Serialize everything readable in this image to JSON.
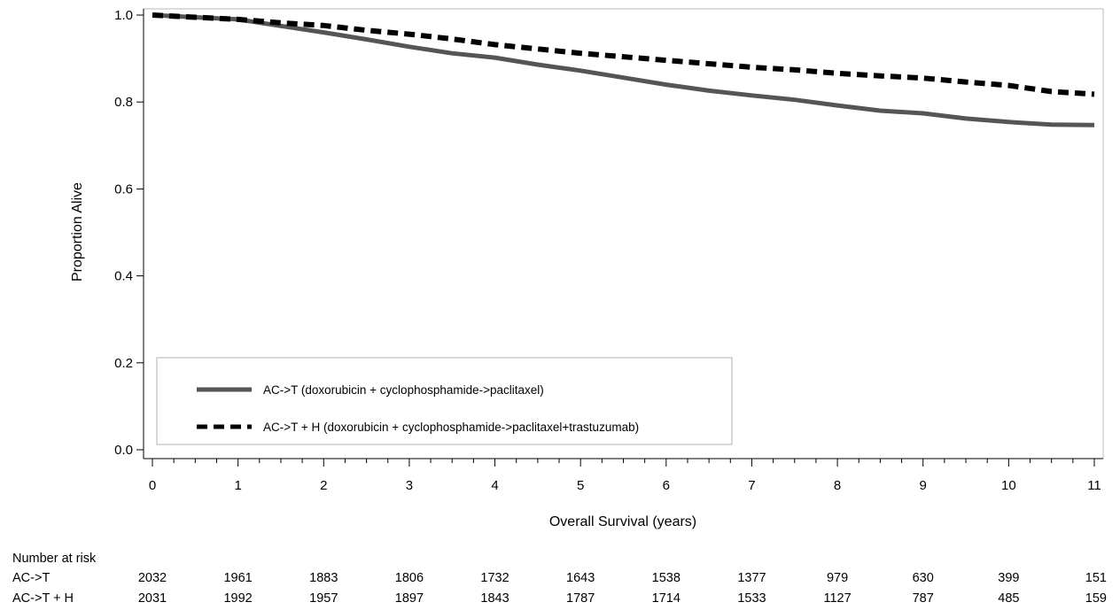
{
  "chart_data": {
    "type": "line",
    "title": "",
    "xlabel": "Overall Survival (years)",
    "ylabel": "Proportion Alive",
    "xlim": [
      0,
      11
    ],
    "ylim": [
      0,
      1
    ],
    "x_ticks": [
      0,
      1,
      2,
      3,
      4,
      5,
      6,
      7,
      8,
      9,
      10,
      11
    ],
    "x_tick_labels": [
      "0",
      "1",
      "2",
      "3",
      "4",
      "5",
      "6",
      "7",
      "8",
      "9",
      "10",
      "11"
    ],
    "x_minor_step": 0.25,
    "y_ticks": [
      0,
      0.2,
      0.4,
      0.6,
      0.8,
      1.0
    ],
    "y_tick_labels": [
      "0.0",
      "0.2",
      "0.4",
      "0.6",
      "0.8",
      "1.0"
    ],
    "grid": false,
    "legend_position": "bottom-left",
    "series": [
      {
        "name": "AC->T (doxorubicin + cyclophosphamide->paclitaxel)",
        "style": "solid",
        "color": "#555555",
        "x": [
          0,
          0.5,
          1,
          1.5,
          2,
          2.5,
          3,
          3.5,
          4,
          4.5,
          5,
          5.5,
          6,
          6.5,
          7,
          7.5,
          8,
          8.5,
          9,
          9.5,
          10,
          10.5,
          11
        ],
        "y": [
          1.0,
          0.995,
          0.99,
          0.975,
          0.96,
          0.944,
          0.927,
          0.912,
          0.902,
          0.886,
          0.872,
          0.856,
          0.84,
          0.826,
          0.815,
          0.805,
          0.792,
          0.78,
          0.774,
          0.762,
          0.754,
          0.748,
          0.747
        ]
      },
      {
        "name": "AC->T + H (doxorubicin + cyclophosphamide->paclitaxel+trastuzumab)",
        "style": "dashed",
        "color": "#000000",
        "x": [
          0,
          0.5,
          1,
          1.5,
          2,
          2.5,
          3,
          3.5,
          4,
          4.5,
          5,
          5.5,
          6,
          6.5,
          7,
          7.5,
          8,
          8.5,
          9,
          9.5,
          10,
          10.5,
          11
        ],
        "y": [
          1.0,
          0.995,
          0.99,
          0.982,
          0.976,
          0.965,
          0.956,
          0.945,
          0.932,
          0.922,
          0.912,
          0.904,
          0.896,
          0.888,
          0.88,
          0.874,
          0.866,
          0.86,
          0.855,
          0.846,
          0.838,
          0.824,
          0.818
        ]
      }
    ]
  },
  "risk_table": {
    "header": "Number at risk",
    "timepoints": [
      0,
      1,
      2,
      3,
      4,
      5,
      6,
      7,
      8,
      9,
      10,
      11
    ],
    "rows": [
      {
        "label": "AC->T",
        "values": [
          "2032",
          "1961",
          "1883",
          "1806",
          "1732",
          "1643",
          "1538",
          "1377",
          "979",
          "630",
          "399",
          "151"
        ]
      },
      {
        "label": "AC->T + H",
        "values": [
          "2031",
          "1992",
          "1957",
          "1897",
          "1843",
          "1787",
          "1714",
          "1533",
          "1127",
          "787",
          "485",
          "159"
        ]
      }
    ]
  }
}
